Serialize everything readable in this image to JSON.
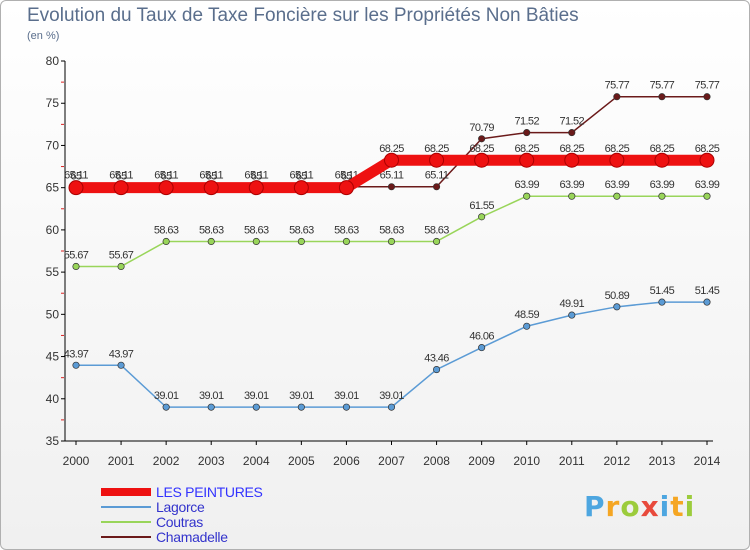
{
  "title": "Evolution du Taux de Taxe Foncière sur les Propriétés Non Bâties",
  "unit": "(en %)",
  "brand": {
    "text": "Proxiti",
    "letters": [
      "P",
      "r",
      "o",
      "x",
      "i",
      "t",
      "i"
    ],
    "colors": [
      "#4da6e0",
      "#f5a623",
      "#9ccc3c",
      "#e84a3c",
      "#4da6e0",
      "#f5a623",
      "#9ccc3c"
    ]
  },
  "chart_data": {
    "type": "line",
    "title": "Evolution du Taux de Taxe Foncière sur les Propriétés Non Bâties",
    "ylabel": "(en %)",
    "xlabel": "",
    "ylim": [
      35,
      80
    ],
    "yticks": [
      "35",
      "40",
      "45",
      "50",
      "55",
      "60",
      "65",
      "70",
      "75",
      "80"
    ],
    "categories": [
      "2000",
      "2001",
      "2002",
      "2003",
      "2004",
      "2005",
      "2006",
      "2007",
      "2008",
      "2009",
      "2010",
      "2011",
      "2012",
      "2013",
      "2014"
    ],
    "series": [
      {
        "name": "Chamadelle",
        "color": "#6b1a1a",
        "labelColor": "#333333",
        "values": [
          65.11,
          65.11,
          65.11,
          65.11,
          65.11,
          65.11,
          65.11,
          65.11,
          65.11,
          70.79,
          71.52,
          71.52,
          75.77,
          75.77,
          75.77
        ],
        "labels": [
          "65.11",
          "65.11",
          "65.11",
          "65.11",
          "65.11",
          "65.11",
          "65.11",
          "65.11",
          "65.11",
          "70.79",
          "71.52",
          "71.52",
          "75.77",
          "75.77",
          "75.77"
        ]
      },
      {
        "name": "Coutras",
        "color": "#99d55a",
        "labelColor": "#333333",
        "values": [
          55.67,
          55.67,
          58.63,
          58.63,
          58.63,
          58.63,
          58.63,
          58.63,
          58.63,
          61.55,
          63.99,
          63.99,
          63.99,
          63.99,
          63.99
        ],
        "labels": [
          "55.67",
          "55.67",
          "58.63",
          "58.63",
          "58.63",
          "58.63",
          "58.63",
          "58.63",
          "58.63",
          "61.55",
          "63.99",
          "63.99",
          "63.99",
          "63.99",
          "63.99"
        ]
      },
      {
        "name": "Lagorce",
        "color": "#5b9bd5",
        "labelColor": "#333333",
        "values": [
          43.97,
          43.97,
          39.01,
          39.01,
          39.01,
          39.01,
          39.01,
          39.01,
          43.46,
          46.06,
          48.59,
          49.91,
          50.89,
          51.45,
          51.45
        ],
        "labels": [
          "43.97",
          "43.97",
          "39.01",
          "39.01",
          "39.01",
          "39.01",
          "39.01",
          "39.01",
          "43.46",
          "46.06",
          "48.59",
          "49.91",
          "50.89",
          "51.45",
          "51.45"
        ]
      },
      {
        "name": "LES PEINTURES",
        "color": "#ee1111",
        "labelColor": "#333333",
        "values": [
          65,
          65,
          65,
          65,
          65,
          65,
          65,
          68.25,
          68.25,
          68.25,
          68.25,
          68.25,
          68.25,
          68.25,
          68.25
        ],
        "labels": [
          "65",
          "65",
          "65",
          "65",
          "65",
          "65",
          "65",
          "68.25",
          "68.25",
          "68.25",
          "68.25",
          "68.25",
          "68.25",
          "68.25",
          "68.25"
        ]
      }
    ],
    "legend": [
      {
        "name": "LES PEINTURES",
        "color": "#ee1111",
        "textColor": "#3333ff"
      },
      {
        "name": "Lagorce",
        "color": "#5b9bd5",
        "textColor": "#3333cc"
      },
      {
        "name": "Coutras",
        "color": "#99d55a",
        "textColor": "#3333cc"
      },
      {
        "name": "Chamadelle",
        "color": "#6b1a1a",
        "textColor": "#3333cc"
      }
    ]
  }
}
